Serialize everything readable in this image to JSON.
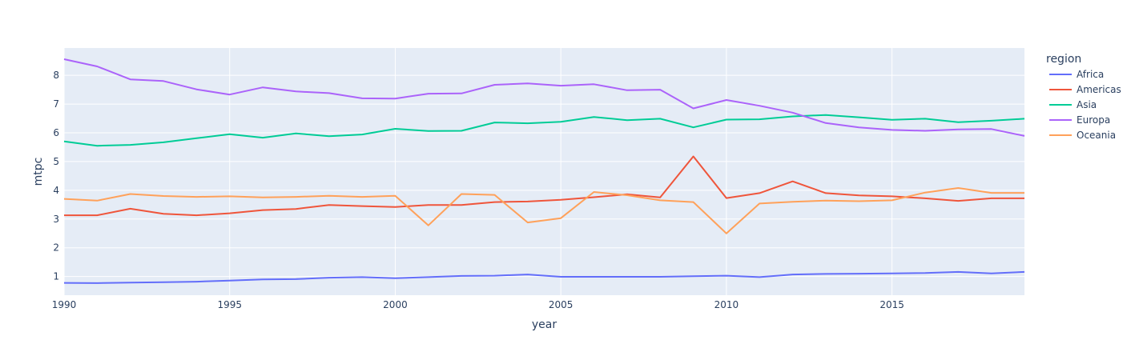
{
  "chart_data": {
    "type": "line",
    "xlabel": "year",
    "ylabel": "mtpc",
    "xlim": [
      1990,
      2019
    ],
    "ylim": [
      0.35,
      8.95
    ],
    "x_ticks": [
      1990,
      1995,
      2000,
      2005,
      2010,
      2015
    ],
    "y_ticks": [
      1,
      2,
      3,
      4,
      5,
      6,
      7,
      8
    ],
    "grid": true,
    "legend_title": "region",
    "legend_position": "right",
    "x": [
      1990,
      1991,
      1992,
      1993,
      1994,
      1995,
      1996,
      1997,
      1998,
      1999,
      2000,
      2001,
      2002,
      2003,
      2004,
      2005,
      2006,
      2007,
      2008,
      2009,
      2010,
      2011,
      2012,
      2013,
      2014,
      2015,
      2016,
      2017,
      2018,
      2019
    ],
    "series": [
      {
        "name": "Africa",
        "color": "#636efa",
        "values": [
          0.78,
          0.77,
          0.79,
          0.8,
          0.82,
          0.86,
          0.9,
          0.91,
          0.96,
          0.98,
          0.94,
          0.98,
          1.02,
          1.03,
          1.07,
          0.99,
          0.99,
          0.99,
          0.99,
          1.01,
          1.03,
          0.98,
          1.07,
          1.09,
          1.1,
          1.11,
          1.12,
          1.16,
          1.11,
          1.16
        ]
      },
      {
        "name": "Americas",
        "color": "#ef553b",
        "values": [
          3.13,
          3.13,
          3.36,
          3.18,
          3.13,
          3.2,
          3.31,
          3.35,
          3.49,
          3.45,
          3.42,
          3.49,
          3.49,
          3.59,
          3.61,
          3.67,
          3.76,
          3.86,
          3.75,
          5.18,
          3.73,
          3.9,
          4.31,
          3.9,
          3.82,
          3.79,
          3.72,
          3.63,
          3.72,
          3.72
        ]
      },
      {
        "name": "Asia",
        "color": "#00cc96",
        "values": [
          5.7,
          5.55,
          5.58,
          5.67,
          5.81,
          5.95,
          5.83,
          5.98,
          5.88,
          5.94,
          6.14,
          6.06,
          6.07,
          6.36,
          6.33,
          6.38,
          6.55,
          6.44,
          6.49,
          6.19,
          6.46,
          6.47,
          6.57,
          6.62,
          6.54,
          6.45,
          6.49,
          6.37,
          6.42,
          6.49
        ]
      },
      {
        "name": "Europa",
        "color": "#ab63fa",
        "values": [
          8.56,
          8.31,
          7.86,
          7.8,
          7.51,
          7.33,
          7.58,
          7.44,
          7.38,
          7.2,
          7.19,
          7.36,
          7.37,
          7.67,
          7.72,
          7.64,
          7.69,
          7.48,
          7.5,
          6.85,
          7.14,
          6.94,
          6.7,
          6.34,
          6.19,
          6.1,
          6.07,
          6.12,
          6.13,
          5.89
        ]
      },
      {
        "name": "Oceania",
        "color": "#ffa15a",
        "values": [
          3.7,
          3.64,
          3.87,
          3.8,
          3.77,
          3.79,
          3.75,
          3.77,
          3.81,
          3.77,
          3.81,
          2.78,
          3.87,
          3.84,
          2.88,
          3.03,
          3.94,
          3.83,
          3.65,
          3.59,
          2.5,
          3.54,
          3.6,
          3.64,
          3.62,
          3.65,
          3.92,
          4.08,
          3.91,
          3.91
        ]
      }
    ]
  }
}
